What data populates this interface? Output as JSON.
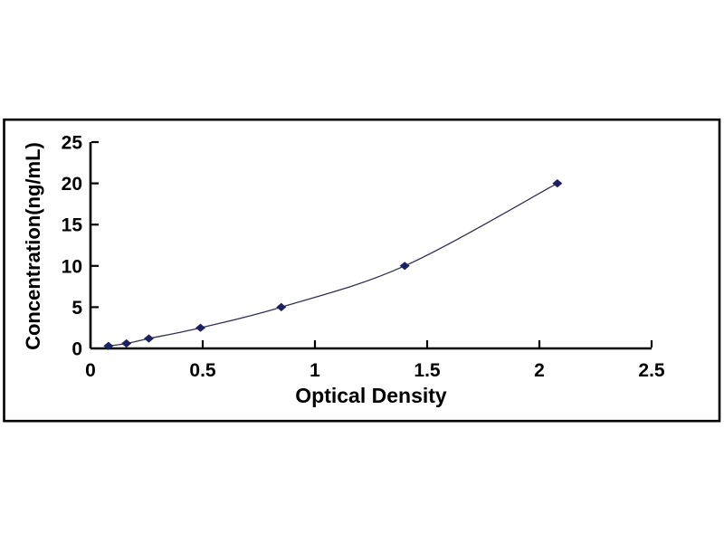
{
  "figure": {
    "background_color": "#ffffff",
    "frame_border_color": "#000000"
  },
  "chart_data": {
    "type": "line",
    "title": "",
    "xlabel": "Optical Density",
    "ylabel": "Concentration(ng/mL)",
    "x": [
      0.08,
      0.16,
      0.26,
      0.49,
      0.85,
      1.4,
      2.08
    ],
    "y": [
      0.3,
      0.6,
      1.2,
      2.5,
      5,
      10,
      20
    ],
    "xlim": [
      0,
      2.5
    ],
    "ylim": [
      0,
      25
    ],
    "xticks": [
      0,
      0.5,
      1,
      1.5,
      2,
      2.5
    ],
    "yticks": [
      0,
      5,
      10,
      15,
      20,
      25
    ],
    "grid": false,
    "legend": false,
    "marker": "diamond",
    "line_color": "#32324e",
    "marker_color": "#1c2161",
    "axis_color": "#000000",
    "tick_label_color": "#000000"
  }
}
